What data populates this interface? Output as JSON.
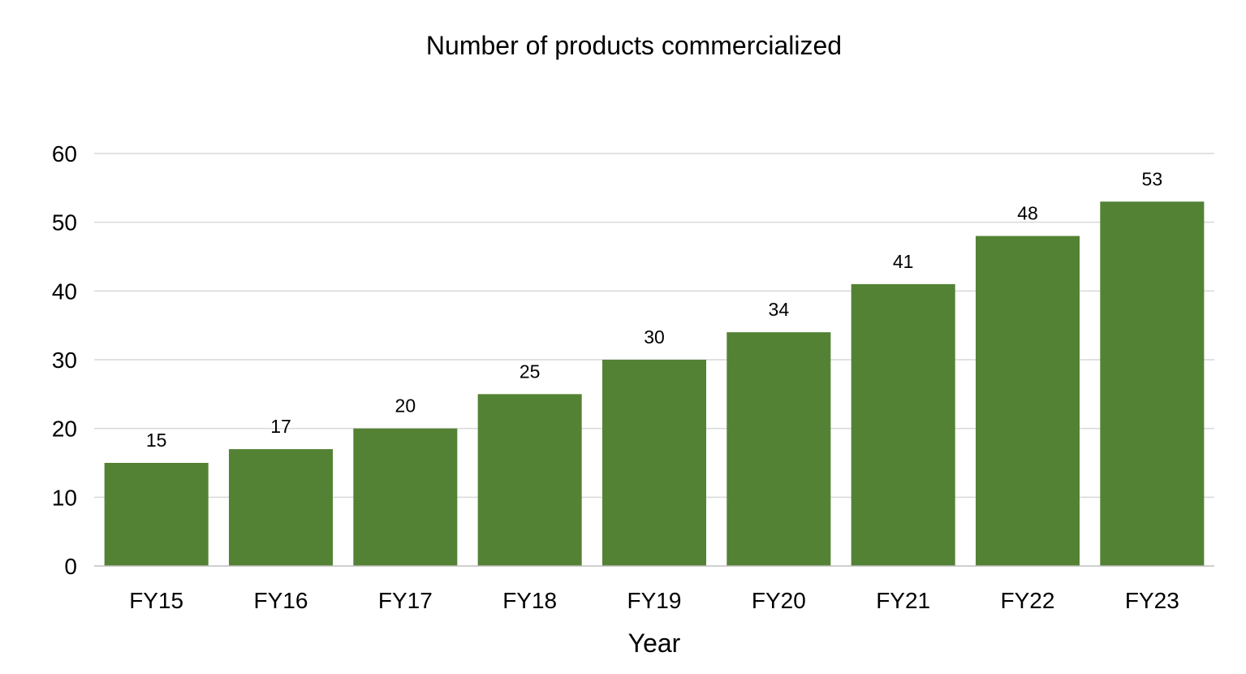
{
  "chart_data": {
    "type": "bar",
    "title": "Number of products commercialized",
    "xlabel": "Year",
    "ylabel": "",
    "categories": [
      "FY15",
      "FY16",
      "FY17",
      "FY18",
      "FY19",
      "FY20",
      "FY21",
      "FY22",
      "FY23"
    ],
    "values": [
      15,
      17,
      20,
      25,
      30,
      34,
      41,
      48,
      53
    ],
    "ylim": [
      0,
      60
    ],
    "yticks": [
      "0",
      "10",
      "20",
      "30",
      "40",
      "50",
      "60"
    ],
    "grid": true,
    "legend": "none",
    "bar_color": "#548235"
  }
}
